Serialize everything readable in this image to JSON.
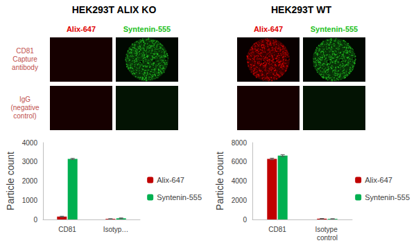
{
  "panels": [
    {
      "title": "HEK293T ALIX KO",
      "columns": [
        {
          "label": "Alix-647",
          "color": "#e00000"
        },
        {
          "label": "Syntenin-555",
          "color": "#22c022"
        }
      ],
      "row_labels": [
        "CD81 Capture antibody",
        "IgG (negative control)"
      ],
      "signal": [
        [
          false,
          true
        ],
        [
          false,
          false
        ]
      ]
    },
    {
      "title": "HEK293T WT",
      "columns": [
        {
          "label": "Alix-647",
          "color": "#e00000"
        },
        {
          "label": "Syntenin-555",
          "color": "#22c022"
        }
      ],
      "signal": [
        [
          true,
          true
        ],
        [
          false,
          false
        ]
      ]
    }
  ],
  "chart_data": [
    {
      "type": "bar",
      "y_label": "Particle count",
      "categories": [
        "CD81",
        "Isotyp…"
      ],
      "series": [
        {
          "name": "Alix-647",
          "color": "#c00000",
          "values": [
            150,
            30
          ],
          "errors": [
            20,
            10
          ]
        },
        {
          "name": "Syntenin-555",
          "color": "#00b050",
          "values": [
            3150,
            60
          ],
          "errors": [
            30,
            20
          ]
        }
      ],
      "ylim": [
        0,
        4000
      ],
      "yticks": [
        0,
        1000,
        2000,
        3000,
        4000
      ],
      "grid": false,
      "legend": "right"
    },
    {
      "type": "bar",
      "y_label": "Particle count",
      "categories": [
        "CD81",
        "Isotype control"
      ],
      "series": [
        {
          "name": "Alix-647",
          "color": "#c00000",
          "values": [
            6300,
            80
          ],
          "errors": [
            80,
            20
          ]
        },
        {
          "name": "Syntenin-555",
          "color": "#00b050",
          "values": [
            6650,
            60
          ],
          "errors": [
            100,
            20
          ]
        }
      ],
      "ylim": [
        0,
        8000
      ],
      "yticks": [
        0,
        2000,
        4000,
        6000,
        8000
      ],
      "grid": false,
      "legend": "right"
    }
  ]
}
